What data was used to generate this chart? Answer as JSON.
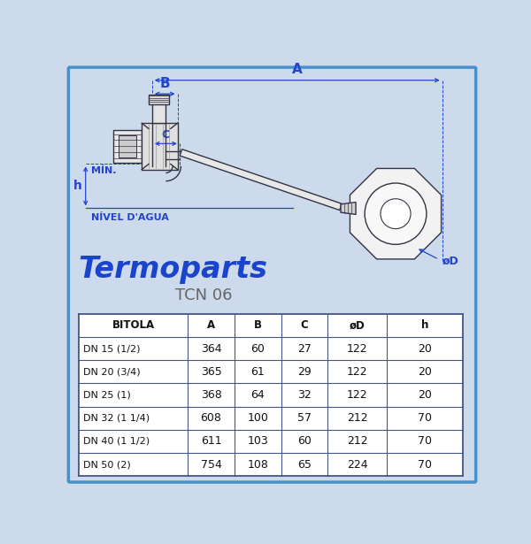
{
  "background_color": "#ccdaeb",
  "border_color": "#4a90c8",
  "title": "Termoparts",
  "subtitle": "TCN 06",
  "title_color": "#1a44cc",
  "subtitle_color": "#666666",
  "dim_color": "#2244cc",
  "drawing_fill": "#f0f0f0",
  "drawing_edge": "#333344",
  "table_headers": [
    "BITOLA",
    "A",
    "B",
    "C",
    "øD",
    "h"
  ],
  "table_rows": [
    [
      "DN 15 (1/2)",
      "364",
      "60",
      "27",
      "122",
      "20"
    ],
    [
      "DN 20 (3/4)",
      "365",
      "61",
      "29",
      "122",
      "20"
    ],
    [
      "DN 25 (1)",
      "368",
      "64",
      "32",
      "122",
      "20"
    ],
    [
      "DN 32 (1 1/4)",
      "608",
      "100",
      "57",
      "212",
      "70"
    ],
    [
      "DN 40 (1 1/2)",
      "611",
      "103",
      "60",
      "212",
      "70"
    ],
    [
      "DN 50 (2)",
      "754",
      "108",
      "65",
      "224",
      "70"
    ]
  ],
  "label_A": "A",
  "label_B": "B",
  "label_C": "C",
  "label_h": "h",
  "label_D": "øD",
  "label_min": "MÍN.",
  "label_nivel": "NÍVEL D'AGUA"
}
